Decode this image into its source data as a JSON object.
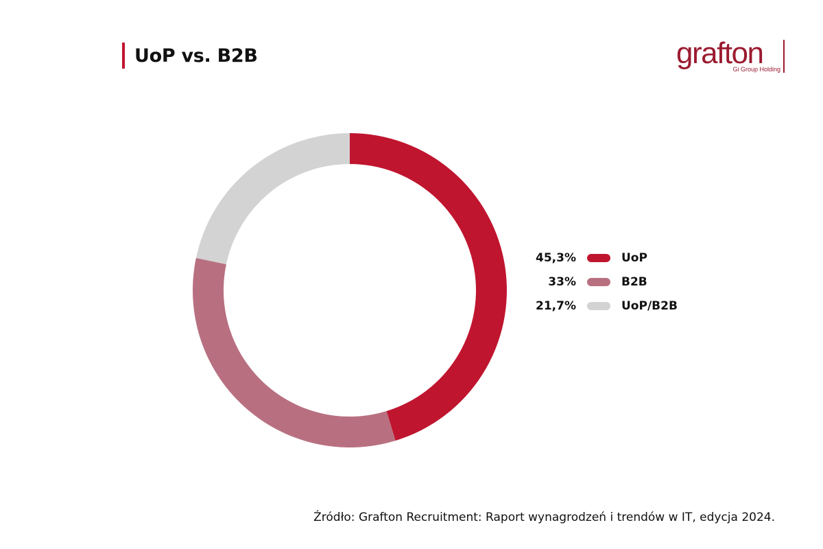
{
  "header": {
    "title": "UoP vs. B2B",
    "accent_color": "#c0152f"
  },
  "logo": {
    "word": "grafton",
    "subtitle": "Gi Group Holding",
    "color": "#9b1b30"
  },
  "chart_data": {
    "type": "pie",
    "variant": "donut",
    "title": "UoP vs. B2B",
    "legend_position": "right",
    "slices": [
      {
        "label": "UoP",
        "value": 45.3,
        "value_label": "45,3%",
        "color": "#c0152f"
      },
      {
        "label": "B2B",
        "value": 33,
        "value_label": "33%",
        "color": "#b87080"
      },
      {
        "label": "UoP/B2B",
        "value": 21.7,
        "value_label": "21,7%",
        "color": "#d3d3d3"
      }
    ]
  },
  "footer": {
    "source": "Źródło: Grafton Recruitment: Raport wynagrodzeń i trendów w IT, edycja 2024."
  }
}
